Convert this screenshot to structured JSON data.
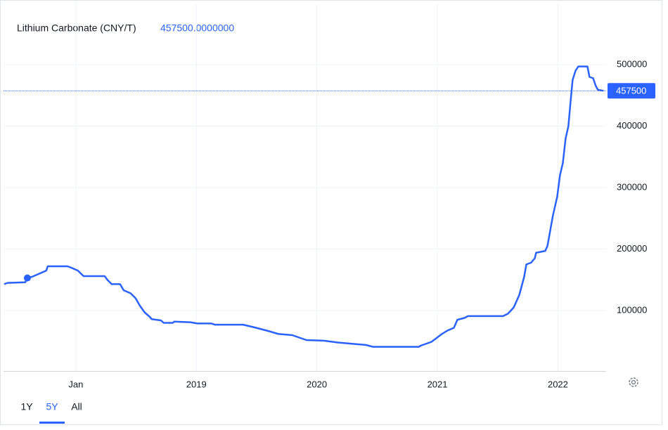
{
  "chart_data": {
    "type": "line",
    "title": "Lithium Carbonate (CNY/T)",
    "legend_value": "457500.0000000",
    "price_line": 457500,
    "color": "#2962ff",
    "grid": true,
    "xlim": [
      2017.4,
      2022.4
    ],
    "xticks": [
      {
        "value": 2018,
        "label": "Jan"
      },
      2019,
      2020,
      2021,
      2022
    ],
    "ylim": [
      0,
      600000
    ],
    "yticks": [
      100000,
      200000,
      300000,
      400000,
      500000
    ],
    "marker": {
      "x": 2017.598,
      "y": 153000
    },
    "x": [
      2017.405,
      2017.434,
      2017.58,
      2017.598,
      2017.638,
      2017.697,
      2017.755,
      2017.767,
      2017.93,
      2017.959,
      2018.017,
      2018.064,
      2018.239,
      2018.262,
      2018.297,
      2018.367,
      2018.397,
      2018.455,
      2018.496,
      2018.531,
      2018.571,
      2018.612,
      2018.63,
      2018.706,
      2018.729,
      2018.805,
      2018.816,
      2018.95,
      2019.009,
      2019.125,
      2019.155,
      2019.388,
      2019.475,
      2019.592,
      2019.679,
      2019.796,
      2019.854,
      2019.913,
      2020.058,
      2020.175,
      2020.292,
      2020.408,
      2020.466,
      2020.845,
      2020.863,
      2020.921,
      2020.95,
      2020.991,
      2021.038,
      2021.079,
      2021.137,
      2021.166,
      2021.224,
      2021.254,
      2021.545,
      2021.586,
      2021.633,
      2021.679,
      2021.72,
      2021.738,
      2021.778,
      2021.808,
      2021.819,
      2021.895,
      2021.913,
      2021.936,
      2021.959,
      2021.994,
      2022.017,
      2022.041,
      2022.064,
      2022.087,
      2022.105,
      2022.122,
      2022.146,
      2022.169,
      2022.245,
      2022.262,
      2022.292,
      2022.315,
      2022.332,
      2022.379
    ],
    "series": [
      {
        "name": "Lithium Carbonate",
        "values": [
          143000,
          145000,
          146000,
          153000,
          155000,
          160000,
          165000,
          172000,
          172000,
          170000,
          165000,
          156000,
          156000,
          150000,
          143000,
          143000,
          133000,
          128000,
          120000,
          108000,
          97000,
          90000,
          86000,
          84000,
          80000,
          80000,
          82000,
          81000,
          79000,
          79000,
          77000,
          77000,
          73000,
          67000,
          62000,
          60000,
          56000,
          52000,
          51000,
          48000,
          46000,
          44000,
          41000,
          41000,
          43000,
          47000,
          49000,
          55000,
          62000,
          67000,
          72000,
          85000,
          88000,
          91000,
          91000,
          95000,
          105000,
          125000,
          155000,
          175000,
          178000,
          185000,
          194000,
          197000,
          205000,
          230000,
          255000,
          285000,
          320000,
          340000,
          380000,
          400000,
          440000,
          475000,
          490000,
          497000,
          497000,
          480000,
          478000,
          465000,
          459000,
          457500
        ]
      }
    ],
    "range_buttons": [
      "1Y",
      "5Y",
      "All"
    ]
  }
}
